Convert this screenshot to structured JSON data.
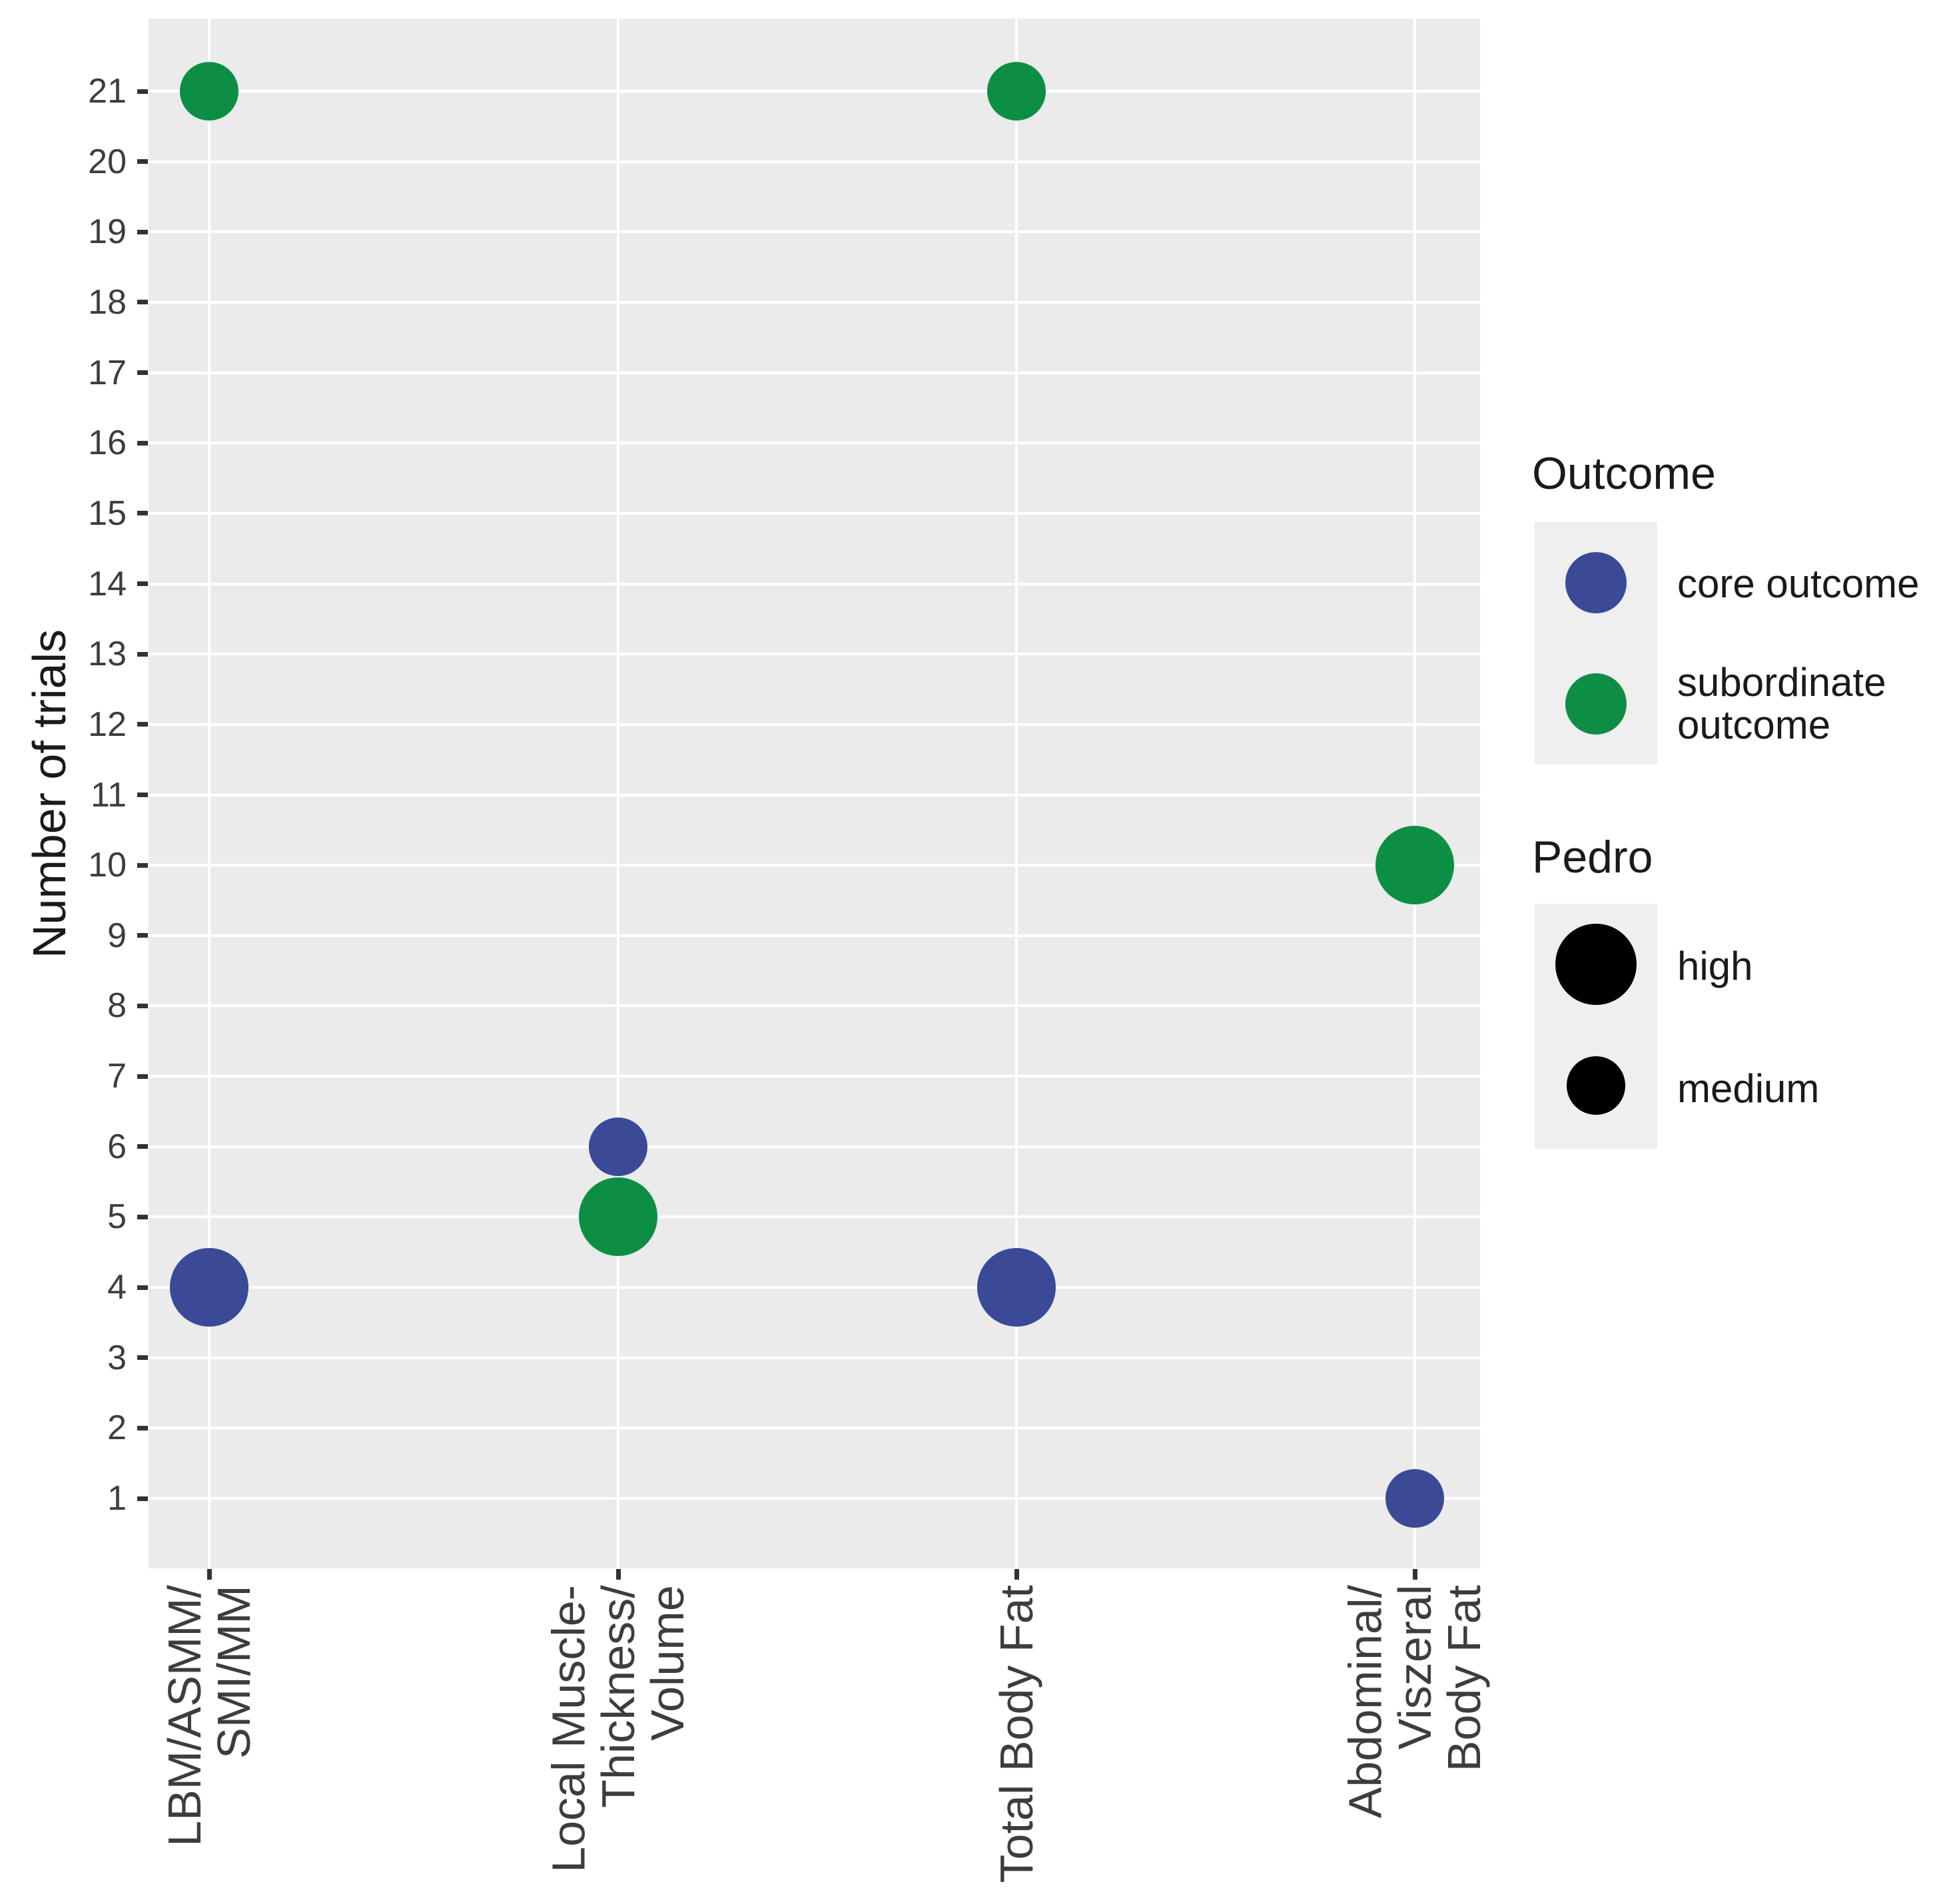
{
  "chart_data": {
    "type": "scatter",
    "title": "",
    "xlabel": "",
    "ylabel": "Number of trials",
    "ylim": [
      0,
      22
    ],
    "yticks": [
      1,
      2,
      3,
      4,
      5,
      6,
      7,
      8,
      9,
      10,
      11,
      12,
      13,
      14,
      15,
      16,
      17,
      18,
      19,
      20,
      21
    ],
    "grid": true,
    "legend_position": "right",
    "categories": [
      "LBM/ASMM/\nSMI/MM",
      "Local Muscle-\nThickness/\nVolume",
      "Total Body Fat",
      "Abdominal/\nViszeral\nBody Fat"
    ],
    "points": [
      {
        "category": 0,
        "y": 21,
        "outcome": "subordinate outcome",
        "pedro": "medium"
      },
      {
        "category": 0,
        "y": 4,
        "outcome": "core outcome",
        "pedro": "high"
      },
      {
        "category": 1,
        "y": 6,
        "outcome": "core outcome",
        "pedro": "medium"
      },
      {
        "category": 1,
        "y": 5,
        "outcome": "subordinate outcome",
        "pedro": "high"
      },
      {
        "category": 2,
        "y": 21,
        "outcome": "subordinate outcome",
        "pedro": "medium"
      },
      {
        "category": 2,
        "y": 4,
        "outcome": "core outcome",
        "pedro": "high"
      },
      {
        "category": 3,
        "y": 10,
        "outcome": "subordinate outcome",
        "pedro": "high"
      },
      {
        "category": 3,
        "y": 1,
        "outcome": "core outcome",
        "pedro": "medium"
      }
    ],
    "colors": {
      "core": "#3A4A97",
      "subordinate": "#0C8F44",
      "pedro": "#000000",
      "panel_bg": "#EBEBEB",
      "grid": "#FFFFFF",
      "key_bg": "#EFEFEF",
      "tick_text": "#3D3D3D",
      "title_text": "#1A1A1A"
    },
    "legend": {
      "outcome": {
        "title": "Outcome",
        "items": [
          {
            "label": "core outcome",
            "color_key": "core"
          },
          {
            "label": "subordinate\noutcome",
            "color_key": "subordinate"
          }
        ]
      },
      "pedro": {
        "title": "Pedro",
        "items": [
          {
            "label": "high",
            "size": "high"
          },
          {
            "label": "medium",
            "size": "medium"
          }
        ]
      }
    }
  }
}
